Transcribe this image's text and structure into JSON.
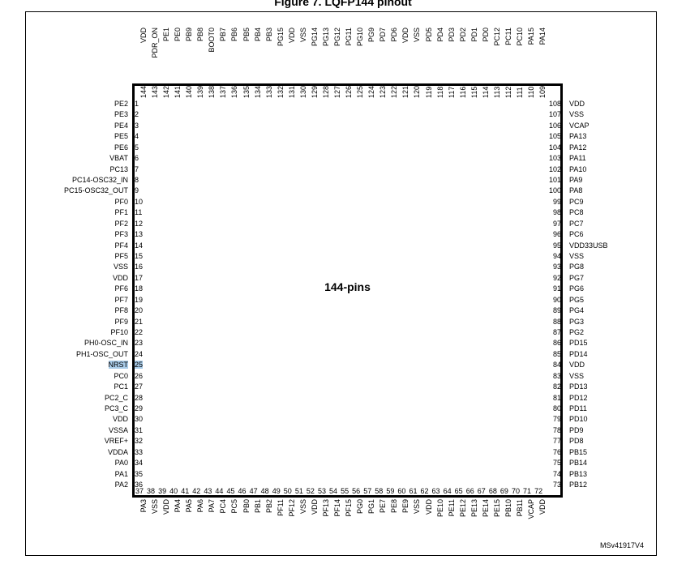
{
  "figure_title": "Figure 7. LQFP144 pinout",
  "package_label": "144-pins",
  "figure_ref": "MSv41917V4",
  "highlight_pin": 25,
  "left_pins": [
    {
      "num": "1",
      "name": "PE2"
    },
    {
      "num": "2",
      "name": "PE3"
    },
    {
      "num": "3",
      "name": "PE4"
    },
    {
      "num": "4",
      "name": "PE5"
    },
    {
      "num": "5",
      "name": "PE6"
    },
    {
      "num": "6",
      "name": "VBAT"
    },
    {
      "num": "7",
      "name": "PC13"
    },
    {
      "num": "8",
      "name": "PC14-OSC32_IN"
    },
    {
      "num": "9",
      "name": "PC15-OSC32_OUT"
    },
    {
      "num": "10",
      "name": "PF0"
    },
    {
      "num": "11",
      "name": "PF1"
    },
    {
      "num": "12",
      "name": "PF2"
    },
    {
      "num": "13",
      "name": "PF3"
    },
    {
      "num": "14",
      "name": "PF4"
    },
    {
      "num": "15",
      "name": "PF5"
    },
    {
      "num": "16",
      "name": "VSS"
    },
    {
      "num": "17",
      "name": "VDD"
    },
    {
      "num": "18",
      "name": "PF6"
    },
    {
      "num": "19",
      "name": "PF7"
    },
    {
      "num": "20",
      "name": "PF8"
    },
    {
      "num": "21",
      "name": "PF9"
    },
    {
      "num": "22",
      "name": "PF10"
    },
    {
      "num": "23",
      "name": "PH0-OSC_IN"
    },
    {
      "num": "24",
      "name": "PH1-OSC_OUT"
    },
    {
      "num": "25",
      "name": "NRST"
    },
    {
      "num": "26",
      "name": "PC0"
    },
    {
      "num": "27",
      "name": "PC1"
    },
    {
      "num": "28",
      "name": "PC2_C"
    },
    {
      "num": "29",
      "name": "PC3_C"
    },
    {
      "num": "30",
      "name": "VDD"
    },
    {
      "num": "31",
      "name": "VSSA"
    },
    {
      "num": "32",
      "name": "VREF+"
    },
    {
      "num": "33",
      "name": "VDDA"
    },
    {
      "num": "34",
      "name": "PA0"
    },
    {
      "num": "35",
      "name": "PA1"
    },
    {
      "num": "36",
      "name": "PA2"
    }
  ],
  "right_pins": [
    {
      "num": "108",
      "name": "VDD"
    },
    {
      "num": "107",
      "name": "VSS"
    },
    {
      "num": "106",
      "name": "VCAP"
    },
    {
      "num": "105",
      "name": "PA13"
    },
    {
      "num": "104",
      "name": "PA12"
    },
    {
      "num": "103",
      "name": "PA11"
    },
    {
      "num": "102",
      "name": "PA10"
    },
    {
      "num": "101",
      "name": "PA9"
    },
    {
      "num": "100",
      "name": "PA8"
    },
    {
      "num": "99",
      "name": "PC9"
    },
    {
      "num": "98",
      "name": "PC8"
    },
    {
      "num": "97",
      "name": "PC7"
    },
    {
      "num": "96",
      "name": "PC6"
    },
    {
      "num": "95",
      "name": "VDD33USB"
    },
    {
      "num": "94",
      "name": "VSS"
    },
    {
      "num": "93",
      "name": "PG8"
    },
    {
      "num": "92",
      "name": "PG7"
    },
    {
      "num": "91",
      "name": "PG6"
    },
    {
      "num": "90",
      "name": "PG5"
    },
    {
      "num": "89",
      "name": "PG4"
    },
    {
      "num": "88",
      "name": "PG3"
    },
    {
      "num": "87",
      "name": "PG2"
    },
    {
      "num": "86",
      "name": "PD15"
    },
    {
      "num": "85",
      "name": "PD14"
    },
    {
      "num": "84",
      "name": "VDD"
    },
    {
      "num": "83",
      "name": "VSS"
    },
    {
      "num": "82",
      "name": "PD13"
    },
    {
      "num": "81",
      "name": "PD12"
    },
    {
      "num": "80",
      "name": "PD11"
    },
    {
      "num": "79",
      "name": "PD10"
    },
    {
      "num": "78",
      "name": "PD9"
    },
    {
      "num": "77",
      "name": "PD8"
    },
    {
      "num": "76",
      "name": "PB15"
    },
    {
      "num": "75",
      "name": "PB14"
    },
    {
      "num": "74",
      "name": "PB13"
    },
    {
      "num": "73",
      "name": "PB12"
    }
  ],
  "top_pins": [
    {
      "num": "144",
      "name": "VDD"
    },
    {
      "num": "143",
      "name": "PDR_ON"
    },
    {
      "num": "142",
      "name": "PE1"
    },
    {
      "num": "141",
      "name": "PE0"
    },
    {
      "num": "140",
      "name": "PB9"
    },
    {
      "num": "139",
      "name": "PB8"
    },
    {
      "num": "138",
      "name": "BOOT0"
    },
    {
      "num": "137",
      "name": "PB7"
    },
    {
      "num": "136",
      "name": "PB6"
    },
    {
      "num": "135",
      "name": "PB5"
    },
    {
      "num": "134",
      "name": "PB4"
    },
    {
      "num": "133",
      "name": "PB3"
    },
    {
      "num": "132",
      "name": "PG15"
    },
    {
      "num": "131",
      "name": "VDD"
    },
    {
      "num": "130",
      "name": "VSS"
    },
    {
      "num": "129",
      "name": "PG14"
    },
    {
      "num": "128",
      "name": "PG13"
    },
    {
      "num": "127",
      "name": "PG12"
    },
    {
      "num": "126",
      "name": "PG11"
    },
    {
      "num": "125",
      "name": "PG10"
    },
    {
      "num": "124",
      "name": "PG9"
    },
    {
      "num": "123",
      "name": "PD7"
    },
    {
      "num": "122",
      "name": "PD6"
    },
    {
      "num": "121",
      "name": "VDD"
    },
    {
      "num": "120",
      "name": "VSS"
    },
    {
      "num": "119",
      "name": "PD5"
    },
    {
      "num": "118",
      "name": "PD4"
    },
    {
      "num": "117",
      "name": "PD3"
    },
    {
      "num": "116",
      "name": "PD2"
    },
    {
      "num": "115",
      "name": "PD1"
    },
    {
      "num": "114",
      "name": "PD0"
    },
    {
      "num": "113",
      "name": "PC12"
    },
    {
      "num": "112",
      "name": "PC11"
    },
    {
      "num": "111",
      "name": "PC10"
    },
    {
      "num": "110",
      "name": "PA15"
    },
    {
      "num": "109",
      "name": "PA14"
    }
  ],
  "bottom_pins": [
    {
      "num": "37",
      "name": "PA3"
    },
    {
      "num": "38",
      "name": "VSS"
    },
    {
      "num": "39",
      "name": "VDD"
    },
    {
      "num": "40",
      "name": "PA4"
    },
    {
      "num": "41",
      "name": "PA5"
    },
    {
      "num": "42",
      "name": "PA6"
    },
    {
      "num": "43",
      "name": "PA7"
    },
    {
      "num": "44",
      "name": "PC4"
    },
    {
      "num": "45",
      "name": "PC5"
    },
    {
      "num": "46",
      "name": "PB0"
    },
    {
      "num": "47",
      "name": "PB1"
    },
    {
      "num": "48",
      "name": "PB2"
    },
    {
      "num": "49",
      "name": "PF11"
    },
    {
      "num": "50",
      "name": "PF12"
    },
    {
      "num": "51",
      "name": "VSS"
    },
    {
      "num": "52",
      "name": "VDD"
    },
    {
      "num": "53",
      "name": "PF13"
    },
    {
      "num": "54",
      "name": "PF14"
    },
    {
      "num": "55",
      "name": "PF15"
    },
    {
      "num": "56",
      "name": "PG0"
    },
    {
      "num": "57",
      "name": "PG1"
    },
    {
      "num": "58",
      "name": "PE7"
    },
    {
      "num": "59",
      "name": "PE8"
    },
    {
      "num": "60",
      "name": "PE9"
    },
    {
      "num": "61",
      "name": "VSS"
    },
    {
      "num": "62",
      "name": "VDD"
    },
    {
      "num": "63",
      "name": "PE10"
    },
    {
      "num": "64",
      "name": "PE11"
    },
    {
      "num": "65",
      "name": "PE12"
    },
    {
      "num": "66",
      "name": "PE13"
    },
    {
      "num": "67",
      "name": "PE14"
    },
    {
      "num": "68",
      "name": "PE15"
    },
    {
      "num": "69",
      "name": "PB10"
    },
    {
      "num": "70",
      "name": "PB11"
    },
    {
      "num": "71",
      "name": "VCAP"
    },
    {
      "num": "72",
      "name": "VDD"
    }
  ]
}
